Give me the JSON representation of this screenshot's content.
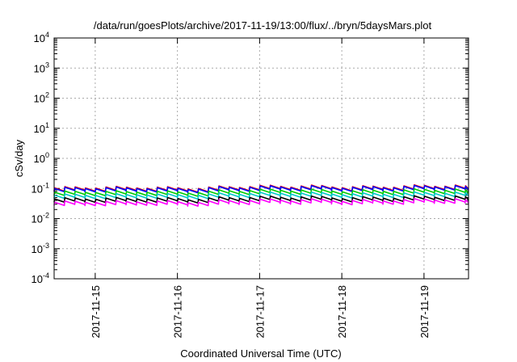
{
  "chart_data": {
    "type": "line",
    "title": "/data/run/goesPlots/archive/2017-11-19/13:00/flux/../bryn/5daysMars.plot",
    "xlabel": "Coordinated Universal Time (UTC)",
    "ylabel": "cSv/day",
    "x_scale": "time",
    "xlim": [
      "2017-11-14T12:00",
      "2017-11-19T13:00"
    ],
    "x_ticks": [
      "2017-11-15",
      "2017-11-16",
      "2017-11-17",
      "2017-11-18",
      "2017-11-19"
    ],
    "y_scale": "log",
    "ylim": [
      0.0001,
      10000
    ],
    "y_ticks": [
      {
        "base": "10",
        "exp": "-4",
        "value": 0.0001
      },
      {
        "base": "10",
        "exp": "-3",
        "value": 0.001
      },
      {
        "base": "10",
        "exp": "-2",
        "value": 0.01
      },
      {
        "base": "10",
        "exp": "-1",
        "value": 0.1
      },
      {
        "base": "10",
        "exp": "0",
        "value": 1
      },
      {
        "base": "10",
        "exp": "1",
        "value": 10
      },
      {
        "base": "10",
        "exp": "2",
        "value": 100
      },
      {
        "base": "10",
        "exp": "3",
        "value": 1000
      },
      {
        "base": "10",
        "exp": "4",
        "value": 10000
      }
    ],
    "grid": true,
    "legend": "none",
    "pattern": {
      "description": "sawtooth: rises sharply then decays, repeating",
      "period_hours": 3,
      "decay_ratio": 0.78
    },
    "series": [
      {
        "color": "#ff0000",
        "peak": [
          0.105,
          0.11,
          0.115,
          0.12,
          0.12,
          0.11
        ]
      },
      {
        "color": "#0000ff",
        "peak": [
          0.1,
          0.105,
          0.11,
          0.115,
          0.115,
          0.105
        ]
      },
      {
        "color": "#00cc00",
        "peak": [
          0.075,
          0.08,
          0.085,
          0.088,
          0.088,
          0.08
        ]
      },
      {
        "color": "#00c8c8",
        "peak": [
          0.06,
          0.065,
          0.068,
          0.07,
          0.07,
          0.065
        ]
      },
      {
        "color": "#000000",
        "peak": [
          0.045,
          0.048,
          0.05,
          0.052,
          0.052,
          0.048
        ]
      },
      {
        "color": "#ff00ff",
        "peak": [
          0.035,
          0.038,
          0.04,
          0.042,
          0.042,
          0.038
        ]
      }
    ]
  }
}
